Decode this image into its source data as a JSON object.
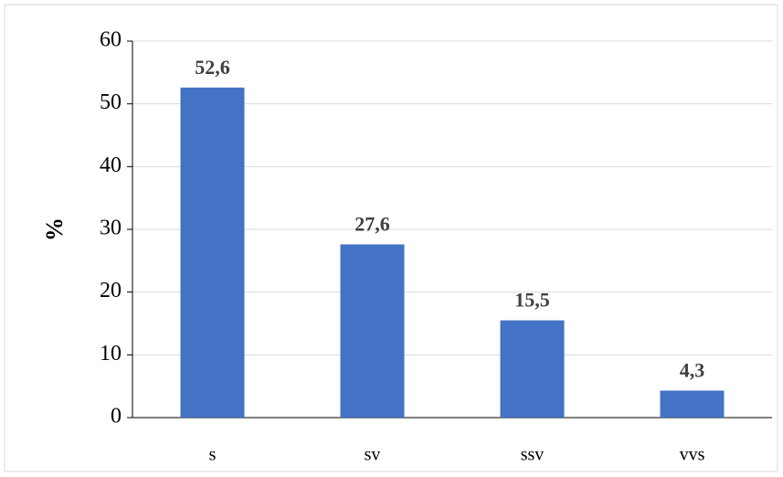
{
  "chart_data": {
    "type": "bar",
    "y_label": "%",
    "categories": [
      "s",
      "sv",
      "ssv",
      "vvs"
    ],
    "values": [
      52.6,
      27.6,
      15.5,
      4.3
    ],
    "value_labels": [
      "52,6",
      "27,6",
      "15,5",
      "4,3"
    ],
    "color": "#4472c4",
    "ylim": [
      0,
      60
    ],
    "yticks": [
      0,
      10,
      20,
      30,
      40,
      50,
      60
    ],
    "grid": true
  }
}
